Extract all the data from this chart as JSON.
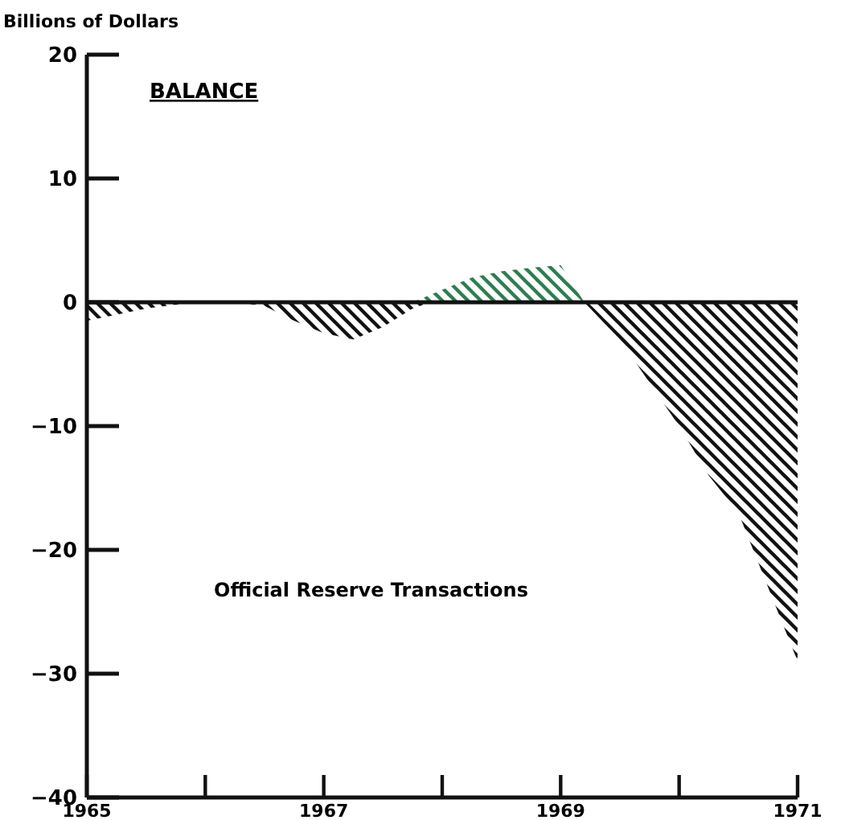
{
  "chart_data": {
    "type": "area",
    "title": "BALANCE",
    "ylabel": "Billions of Dollars",
    "annotations": [
      "Official Reserve Transactions"
    ],
    "series": [
      {
        "color": "#111111",
        "x": [
          1965,
          1965.25,
          1965.5,
          1965.75,
          1966,
          1966.25,
          1966.5,
          1966.75,
          1967,
          1967.25,
          1967.5,
          1967.75,
          1967.9,
          1969.2,
          1969.5,
          1969.75,
          1970,
          1970.25,
          1970.5,
          1970.75,
          1971
        ],
        "values": [
          -1.5,
          -1,
          -0.5,
          -0.2,
          0,
          0,
          -0.3,
          -1.5,
          -2.5,
          -3,
          -2,
          -0.5,
          0,
          0,
          -3,
          -6.5,
          -10,
          -14,
          -17,
          -23,
          -29
        ]
      },
      {
        "color": "#2e7d4f",
        "x": [
          1967.75,
          1968,
          1968.25,
          1968.5,
          1968.75,
          1969,
          1969.1,
          1969.2
        ],
        "values": [
          0,
          1,
          2,
          2.5,
          2.8,
          3,
          1.5,
          0
        ]
      }
    ],
    "xlim": [
      1965,
      1971
    ],
    "xticks": [
      1965,
      {
        "value": 1966,
        "label": null
      },
      1967,
      {
        "value": 1968,
        "label": null
      },
      1969,
      {
        "value": 1970,
        "label": null
      },
      1971
    ],
    "ylim": [
      -40,
      20
    ],
    "yticks": [
      20,
      10,
      0,
      {
        "value": -10,
        "label": "−10"
      },
      {
        "value": -20,
        "label": "−20"
      },
      {
        "value": -30,
        "label": "−30"
      },
      {
        "value": -40,
        "label": "−40"
      }
    ],
    "ref_lines": [
      {
        "axis": "y",
        "value": 0,
        "color": "#111111"
      }
    ],
    "grid": false
  }
}
